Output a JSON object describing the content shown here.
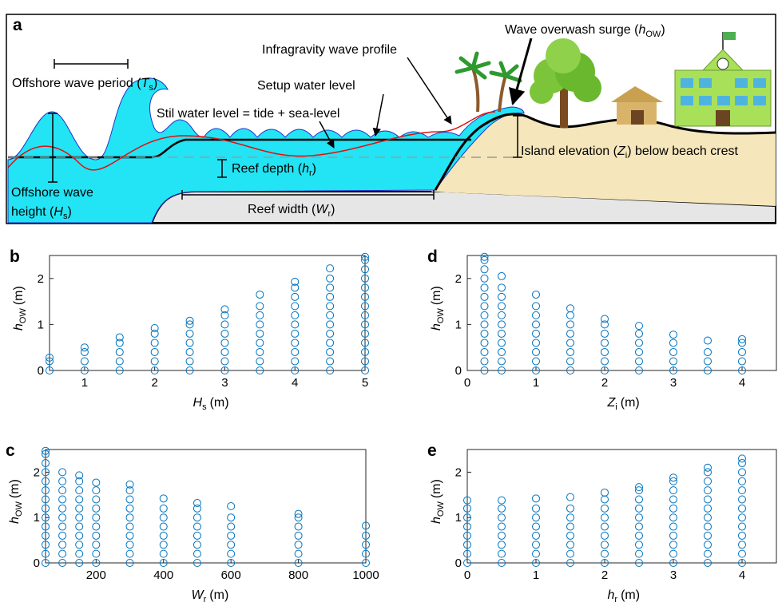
{
  "diagram": {
    "panel": "a",
    "labels": {
      "surge": [
        "Wave overwash surge (",
        "h",
        "OW",
        ")"
      ],
      "infragravity": [
        "Infragravity wave profile"
      ],
      "period": [
        "Offshore wave period (",
        "T",
        "s",
        ")"
      ],
      "setup": [
        "Setup water level"
      ],
      "still": [
        "Stil water level = tide + sea-level"
      ],
      "island": [
        "Island elevation (",
        "Z",
        "i",
        ") below beach crest"
      ],
      "depth": [
        "Reef depth (",
        "h",
        "r",
        ")"
      ],
      "height1": [
        "Offshore wave"
      ],
      "height2": [
        "height (",
        "H",
        "s",
        ")"
      ],
      "width": [
        "Reef width (",
        "W",
        "r",
        ")"
      ]
    }
  },
  "chart_data": [
    {
      "type": "scatter",
      "panel": "b",
      "color": "#0072bd",
      "xlim": [
        0.5,
        5
      ],
      "ylim": [
        0,
        2.5
      ],
      "xticks": [
        1,
        2,
        3,
        4,
        5
      ],
      "yticks": [
        0,
        1,
        2
      ],
      "xlabel": [
        "H",
        "s",
        "(m)"
      ],
      "ylabel": [
        "h",
        "OW",
        "(m)"
      ],
      "series": [
        {
          "x": 0.5,
          "values": [
            0.28,
            0.2,
            0
          ]
        },
        {
          "x": 1,
          "values": [
            0.5,
            0.4,
            0.2,
            0
          ]
        },
        {
          "x": 1.5,
          "values": [
            0.72,
            0.6,
            0.4,
            0.2,
            0
          ]
        },
        {
          "x": 2,
          "values": [
            0.92,
            0.8,
            0.6,
            0.4,
            0.2,
            0
          ]
        },
        {
          "x": 2.5,
          "values": [
            1.08,
            1,
            0.8,
            0.6,
            0.4,
            0.2,
            0
          ]
        },
        {
          "x": 3,
          "values": [
            1.33,
            1.2,
            1,
            0.8,
            0.6,
            0.4,
            0.2,
            0
          ]
        },
        {
          "x": 3.5,
          "values": [
            1.65,
            1.4,
            1.2,
            1,
            0.8,
            0.6,
            0.4,
            0.2,
            0
          ]
        },
        {
          "x": 4,
          "values": [
            1.93,
            1.8,
            1.6,
            1.4,
            1.2,
            1,
            0.8,
            0.6,
            0.4,
            0.2,
            0
          ]
        },
        {
          "x": 4.5,
          "values": [
            2.22,
            2,
            1.8,
            1.6,
            1.4,
            1.2,
            1,
            0.8,
            0.6,
            0.4,
            0.2,
            0
          ]
        },
        {
          "x": 5,
          "values": [
            2.47,
            2.4,
            2.2,
            2,
            1.8,
            1.6,
            1.4,
            1.2,
            1,
            0.8,
            0.6,
            0.4,
            0.2,
            0
          ]
        }
      ]
    },
    {
      "type": "scatter",
      "panel": "c",
      "color": "#0072bd",
      "xlim": [
        50,
        1000
      ],
      "ylim": [
        0,
        2.5
      ],
      "xticks": [
        200,
        400,
        600,
        800,
        1000
      ],
      "yticks": [
        0,
        1,
        2
      ],
      "xlabel": [
        "W",
        "r",
        "(m)"
      ],
      "ylabel": [
        "h",
        "OW",
        "(m)"
      ],
      "series": [
        {
          "x": 50,
          "values": [
            2.47,
            2.4,
            2.2,
            2,
            1.8,
            1.6,
            1.4,
            1.2,
            1,
            0.8,
            0.6,
            0.4,
            0.2,
            0
          ]
        },
        {
          "x": 100,
          "values": [
            2,
            1.8,
            1.6,
            1.4,
            1.2,
            1,
            0.8,
            0.6,
            0.4,
            0.2,
            0
          ]
        },
        {
          "x": 150,
          "values": [
            1.93,
            1.8,
            1.6,
            1.4,
            1.2,
            1,
            0.8,
            0.6,
            0.4,
            0.2,
            0
          ]
        },
        {
          "x": 200,
          "values": [
            1.77,
            1.6,
            1.4,
            1.2,
            1,
            0.8,
            0.6,
            0.4,
            0.2,
            0
          ]
        },
        {
          "x": 300,
          "values": [
            1.73,
            1.6,
            1.4,
            1.2,
            1,
            0.8,
            0.6,
            0.4,
            0.2,
            0
          ]
        },
        {
          "x": 400,
          "values": [
            1.42,
            1.2,
            1,
            0.8,
            0.6,
            0.4,
            0.2,
            0
          ]
        },
        {
          "x": 500,
          "values": [
            1.32,
            1.2,
            1,
            0.8,
            0.6,
            0.4,
            0.2,
            0
          ]
        },
        {
          "x": 600,
          "values": [
            1.25,
            1,
            0.8,
            0.6,
            0.4,
            0.2,
            0
          ]
        },
        {
          "x": 800,
          "values": [
            1.08,
            1,
            0.8,
            0.6,
            0.4,
            0.2,
            0
          ]
        },
        {
          "x": 1000,
          "values": [
            0.82,
            0.6,
            0.4,
            0.2,
            0
          ]
        }
      ]
    },
    {
      "type": "scatter",
      "panel": "d",
      "color": "#0072bd",
      "xlim": [
        0,
        4.5
      ],
      "ylim": [
        0,
        2.5
      ],
      "xticks": [
        0,
        1,
        2,
        3,
        4
      ],
      "yticks": [
        0,
        1,
        2
      ],
      "xlabel": [
        "Z",
        "i",
        "(m)"
      ],
      "ylabel": [
        "h",
        "OW",
        "(m)"
      ],
      "series": [
        {
          "x": 0.25,
          "values": [
            2.47,
            2.4,
            2.2,
            2,
            1.8,
            1.6,
            1.4,
            1.2,
            1,
            0.8,
            0.6,
            0.4,
            0.2,
            0
          ]
        },
        {
          "x": 0.5,
          "values": [
            2.05,
            1.8,
            1.6,
            1.4,
            1.2,
            1,
            0.8,
            0.6,
            0.4,
            0.2,
            0
          ]
        },
        {
          "x": 1,
          "values": [
            1.65,
            1.4,
            1.2,
            1,
            0.8,
            0.6,
            0.4,
            0.2,
            0
          ]
        },
        {
          "x": 1.5,
          "values": [
            1.35,
            1.2,
            1,
            0.8,
            0.6,
            0.4,
            0.2,
            0
          ]
        },
        {
          "x": 2,
          "values": [
            1.12,
            1,
            0.8,
            0.6,
            0.4,
            0.2,
            0
          ]
        },
        {
          "x": 2.5,
          "values": [
            0.97,
            0.8,
            0.6,
            0.4,
            0.2,
            0
          ]
        },
        {
          "x": 3,
          "values": [
            0.78,
            0.6,
            0.4,
            0.2,
            0
          ]
        },
        {
          "x": 3.5,
          "values": [
            0.65,
            0.4,
            0.2,
            0
          ]
        },
        {
          "x": 4,
          "values": [
            0.68,
            0.6,
            0.4,
            0.2,
            0
          ]
        }
      ]
    },
    {
      "type": "scatter",
      "panel": "e",
      "color": "#0072bd",
      "xlim": [
        0,
        4.5
      ],
      "ylim": [
        0,
        2.5
      ],
      "xticks": [
        0,
        1,
        2,
        3,
        4
      ],
      "yticks": [
        0,
        1,
        2
      ],
      "xlabel": [
        "h",
        "r",
        "(m)"
      ],
      "ylabel": [
        "h",
        "OW",
        "(m)"
      ],
      "series": [
        {
          "x": 0,
          "values": [
            1.38,
            1.2,
            1,
            0.8,
            0.6,
            0.4,
            0.2,
            0
          ]
        },
        {
          "x": 0.5,
          "values": [
            1.38,
            1.2,
            1,
            0.8,
            0.6,
            0.4,
            0.2,
            0
          ]
        },
        {
          "x": 1,
          "values": [
            1.42,
            1.2,
            1,
            0.8,
            0.6,
            0.4,
            0.2,
            0
          ]
        },
        {
          "x": 1.5,
          "values": [
            1.45,
            1.2,
            1,
            0.8,
            0.6,
            0.4,
            0.2,
            0
          ]
        },
        {
          "x": 2,
          "values": [
            1.55,
            1.4,
            1.2,
            1,
            0.8,
            0.6,
            0.4,
            0.2,
            0
          ]
        },
        {
          "x": 2.5,
          "values": [
            1.67,
            1.6,
            1.4,
            1.2,
            1,
            0.8,
            0.6,
            0.4,
            0.2,
            0
          ]
        },
        {
          "x": 3,
          "values": [
            1.88,
            1.8,
            1.6,
            1.4,
            1.2,
            1,
            0.8,
            0.6,
            0.4,
            0.2,
            0
          ]
        },
        {
          "x": 3.5,
          "values": [
            2.1,
            2,
            1.8,
            1.6,
            1.4,
            1.2,
            1,
            0.8,
            0.6,
            0.4,
            0.2,
            0
          ]
        },
        {
          "x": 4,
          "values": [
            2.3,
            2.2,
            2,
            1.8,
            1.6,
            1.4,
            1.2,
            1,
            0.8,
            0.6,
            0.4,
            0.2,
            0
          ]
        }
      ]
    }
  ]
}
